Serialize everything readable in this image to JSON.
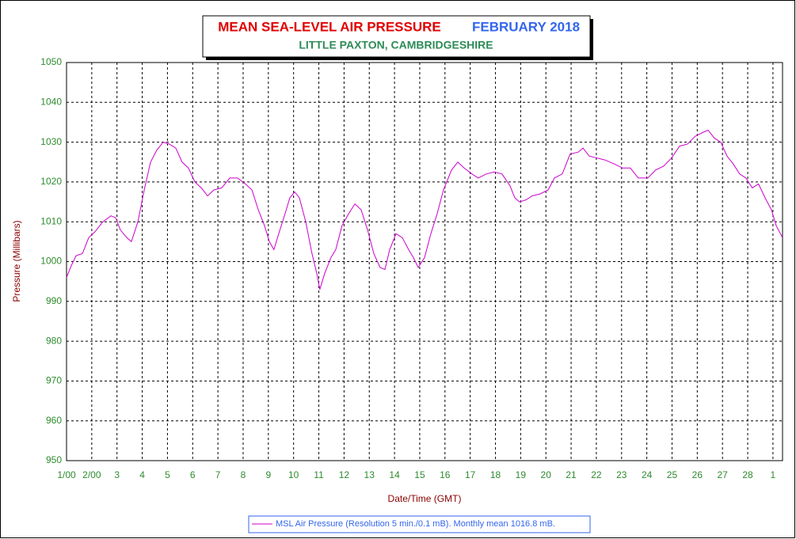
{
  "chart_data": {
    "type": "line",
    "title": "MEAN SEA-LEVEL AIR PRESSURE",
    "title_period": "FEBRUARY 2018",
    "subtitle": "LITTLE PAXTON, CAMBRIDGESHIRE",
    "xlabel": "Date/Time (GMT)",
    "ylabel": "Pressure (Millibars)",
    "xlim": [
      1,
      29.38
    ],
    "ylim": [
      950,
      1050
    ],
    "yticks": [
      950,
      960,
      970,
      980,
      990,
      1000,
      1010,
      1020,
      1030,
      1040,
      1050
    ],
    "xticks": [
      {
        "value": 1,
        "label": "1/00"
      },
      {
        "value": 2,
        "label": "2/00"
      },
      3,
      4,
      5,
      6,
      7,
      8,
      9,
      10,
      11,
      12,
      13,
      14,
      15,
      16,
      17,
      18,
      19,
      20,
      21,
      22,
      23,
      24,
      25,
      26,
      27,
      28,
      {
        "value": 29,
        "label": "1"
      }
    ],
    "grid": true,
    "legend": "bottom",
    "x": [
      1.0,
      1.19,
      1.38,
      1.63,
      1.88,
      2.13,
      2.44,
      2.76,
      2.95,
      3.13,
      3.39,
      3.57,
      3.83,
      4.08,
      4.33,
      4.58,
      4.83,
      5.08,
      5.33,
      5.58,
      5.83,
      6.09,
      6.34,
      6.59,
      6.84,
      7.15,
      7.47,
      7.78,
      8.09,
      8.35,
      8.6,
      8.85,
      9.04,
      9.22,
      9.41,
      9.66,
      9.85,
      10.04,
      10.23,
      10.48,
      10.73,
      10.92,
      11.04,
      11.23,
      11.48,
      11.67,
      11.92,
      12.18,
      12.43,
      12.68,
      12.93,
      13.18,
      13.43,
      13.62,
      13.81,
      14.06,
      14.31,
      14.56,
      14.75,
      14.94,
      15.19,
      15.44,
      15.69,
      15.94,
      16.26,
      16.51,
      16.76,
      17.07,
      17.32,
      17.64,
      17.95,
      18.26,
      18.58,
      18.77,
      18.95,
      19.21,
      19.46,
      19.77,
      20.09,
      20.34,
      20.65,
      20.96,
      21.28,
      21.47,
      21.72,
      22.03,
      22.35,
      22.72,
      23.04,
      23.35,
      23.66,
      24.04,
      24.35,
      24.67,
      24.98,
      25.3,
      25.61,
      25.92,
      26.24,
      26.43,
      26.68,
      26.93,
      27.18,
      27.43,
      27.68,
      27.93,
      28.18,
      28.43,
      28.69,
      28.94,
      29.13,
      29.38
    ],
    "series": [
      {
        "name": "MSL Air Pressure (Resolution 5 min./0.1 mB). Monthly mean 1016.8 mB.",
        "color": "#cc00cc",
        "values": [
          996,
          999,
          1001.5,
          1002,
          1006,
          1007.5,
          1010,
          1011.5,
          1011,
          1008,
          1006,
          1005,
          1010,
          1018,
          1025,
          1028,
          1030,
          1029.5,
          1028.5,
          1025,
          1023.5,
          1020,
          1018.5,
          1016.5,
          1018,
          1018.5,
          1021,
          1021,
          1019.5,
          1018,
          1013,
          1009,
          1005,
          1003,
          1007,
          1012,
          1016,
          1017.5,
          1016,
          1010,
          1002,
          997,
          993,
          997,
          1001,
          1003,
          1009,
          1012,
          1014.5,
          1013,
          1008,
          1002,
          998.5,
          998,
          1003,
          1007,
          1006,
          1003,
          1001,
          998.5,
          1001,
          1007,
          1012,
          1018,
          1023,
          1025,
          1023.5,
          1022,
          1021,
          1022,
          1022.5,
          1022,
          1019,
          1016,
          1015,
          1015.5,
          1016.5,
          1017,
          1018,
          1021,
          1022,
          1027,
          1027.5,
          1028.5,
          1026.5,
          1026,
          1025.5,
          1024.5,
          1023.5,
          1023.5,
          1021,
          1021,
          1023,
          1024,
          1026,
          1029,
          1029.5,
          1031.5,
          1032.5,
          1033,
          1031,
          1030,
          1026.5,
          1024.5,
          1022,
          1021,
          1018.5,
          1019.5,
          1016,
          1013,
          1009,
          1006
        ]
      }
    ]
  }
}
